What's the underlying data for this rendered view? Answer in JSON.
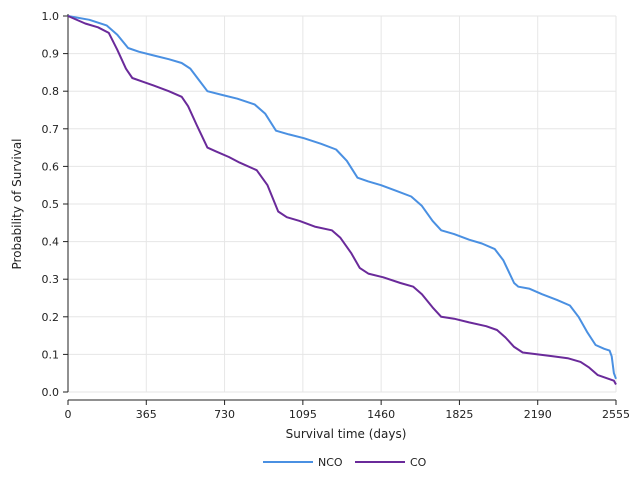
{
  "chart_data": {
    "type": "line",
    "title": "",
    "xlabel": "Survival time (days)",
    "ylabel": "Probability of Survival",
    "xlim": [
      0,
      2555
    ],
    "ylim": [
      0,
      1.0
    ],
    "x_ticks": [
      0,
      365,
      730,
      1095,
      1460,
      1825,
      2190,
      2555
    ],
    "x_tick_labels": [
      "0",
      "365",
      "730",
      "1095",
      "1460",
      "1825",
      "2190",
      "2555"
    ],
    "y_ticks": [
      0,
      0.1,
      0.2,
      0.3,
      0.4,
      0.5,
      0.6,
      0.7,
      0.8,
      0.9,
      1.0
    ],
    "y_tick_labels": [
      "0.0",
      "0.1",
      "0.2",
      "0.3",
      "0.4",
      "0.5",
      "0.6",
      "0.7",
      "0.8",
      "0.9",
      "1.0"
    ],
    "grid": true,
    "legend_position": "bottom",
    "series": [
      {
        "name": "NCO",
        "color": "#4a90e2",
        "points": [
          [
            0,
            1.0
          ],
          [
            100,
            0.99
          ],
          [
            180,
            0.975
          ],
          [
            230,
            0.95
          ],
          [
            280,
            0.915
          ],
          [
            330,
            0.905
          ],
          [
            400,
            0.895
          ],
          [
            470,
            0.885
          ],
          [
            530,
            0.875
          ],
          [
            570,
            0.86
          ],
          [
            610,
            0.83
          ],
          [
            650,
            0.8
          ],
          [
            720,
            0.79
          ],
          [
            790,
            0.78
          ],
          [
            870,
            0.765
          ],
          [
            920,
            0.74
          ],
          [
            970,
            0.695
          ],
          [
            1030,
            0.685
          ],
          [
            1100,
            0.675
          ],
          [
            1180,
            0.66
          ],
          [
            1250,
            0.645
          ],
          [
            1300,
            0.615
          ],
          [
            1350,
            0.57
          ],
          [
            1400,
            0.56
          ],
          [
            1460,
            0.55
          ],
          [
            1530,
            0.535
          ],
          [
            1600,
            0.52
          ],
          [
            1650,
            0.495
          ],
          [
            1700,
            0.455
          ],
          [
            1740,
            0.43
          ],
          [
            1800,
            0.42
          ],
          [
            1870,
            0.405
          ],
          [
            1930,
            0.395
          ],
          [
            1990,
            0.38
          ],
          [
            2030,
            0.35
          ],
          [
            2080,
            0.29
          ],
          [
            2100,
            0.28
          ],
          [
            2150,
            0.275
          ],
          [
            2210,
            0.26
          ],
          [
            2280,
            0.245
          ],
          [
            2340,
            0.23
          ],
          [
            2380,
            0.2
          ],
          [
            2420,
            0.16
          ],
          [
            2460,
            0.125
          ],
          [
            2500,
            0.115
          ],
          [
            2525,
            0.11
          ],
          [
            2535,
            0.095
          ],
          [
            2545,
            0.05
          ],
          [
            2555,
            0.035
          ]
        ]
      },
      {
        "name": "CO",
        "color": "#6a2a9a",
        "points": [
          [
            0,
            1.0
          ],
          [
            80,
            0.98
          ],
          [
            140,
            0.97
          ],
          [
            190,
            0.955
          ],
          [
            230,
            0.91
          ],
          [
            270,
            0.86
          ],
          [
            300,
            0.835
          ],
          [
            350,
            0.825
          ],
          [
            400,
            0.815
          ],
          [
            470,
            0.8
          ],
          [
            530,
            0.785
          ],
          [
            560,
            0.76
          ],
          [
            600,
            0.71
          ],
          [
            650,
            0.65
          ],
          [
            690,
            0.64
          ],
          [
            750,
            0.625
          ],
          [
            800,
            0.61
          ],
          [
            880,
            0.59
          ],
          [
            930,
            0.55
          ],
          [
            980,
            0.48
          ],
          [
            1020,
            0.465
          ],
          [
            1080,
            0.455
          ],
          [
            1150,
            0.44
          ],
          [
            1230,
            0.43
          ],
          [
            1270,
            0.41
          ],
          [
            1320,
            0.37
          ],
          [
            1360,
            0.33
          ],
          [
            1400,
            0.315
          ],
          [
            1470,
            0.305
          ],
          [
            1550,
            0.29
          ],
          [
            1610,
            0.28
          ],
          [
            1650,
            0.26
          ],
          [
            1700,
            0.225
          ],
          [
            1740,
            0.2
          ],
          [
            1800,
            0.195
          ],
          [
            1870,
            0.185
          ],
          [
            1950,
            0.175
          ],
          [
            2000,
            0.165
          ],
          [
            2040,
            0.145
          ],
          [
            2080,
            0.12
          ],
          [
            2120,
            0.105
          ],
          [
            2190,
            0.1
          ],
          [
            2260,
            0.095
          ],
          [
            2330,
            0.09
          ],
          [
            2390,
            0.08
          ],
          [
            2430,
            0.065
          ],
          [
            2470,
            0.045
          ],
          [
            2520,
            0.035
          ],
          [
            2545,
            0.03
          ],
          [
            2555,
            0.02
          ]
        ]
      }
    ]
  }
}
